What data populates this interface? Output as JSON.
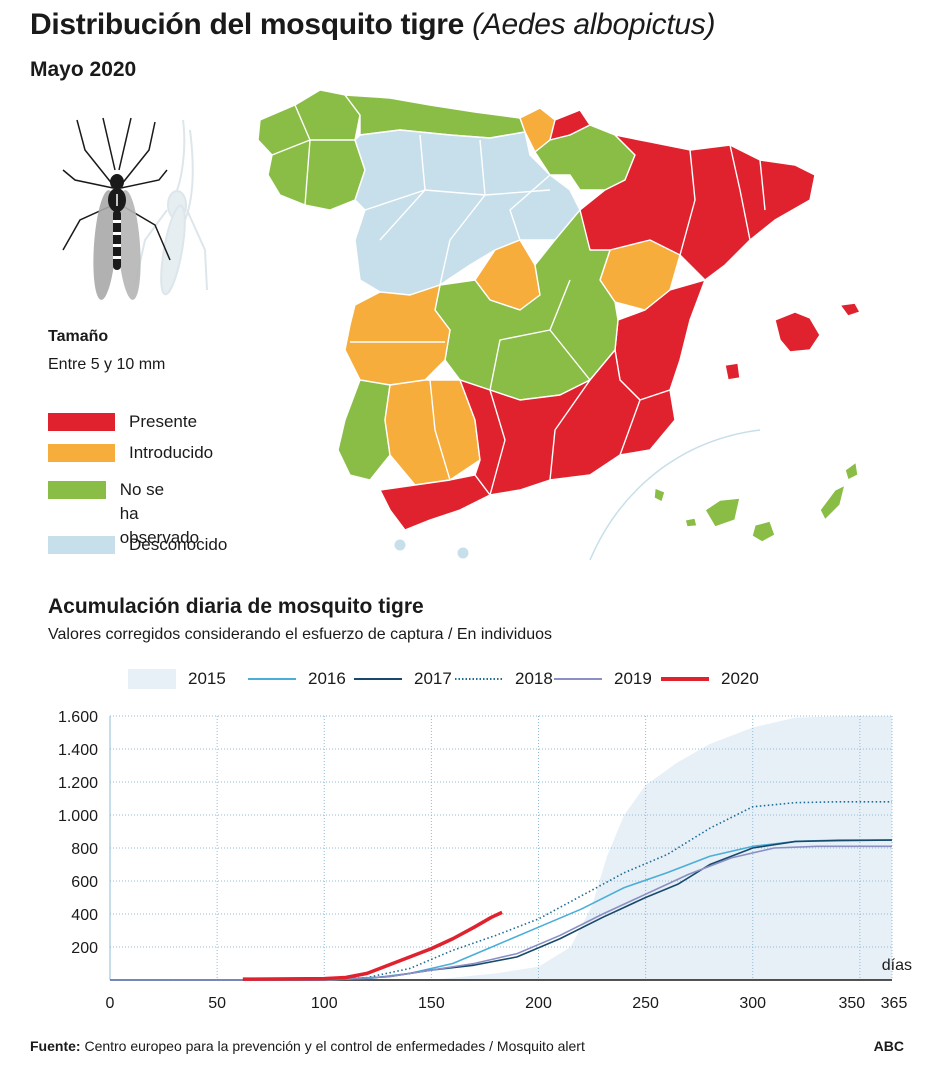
{
  "header": {
    "title": "Distribución del mosquito tigre",
    "title_scientific": "(Aedes albopictus)",
    "subtitle": "Mayo 2020"
  },
  "size": {
    "label": "Tamaño",
    "value": "Entre 5 y 10 mm"
  },
  "map_legend": [
    {
      "label": "Presente",
      "color": "#e0222f"
    },
    {
      "label": "Introducido",
      "color": "#f6ad3c"
    },
    {
      "label": "No se\nha observado",
      "color": "#8abd45"
    },
    {
      "label": "Desconocido",
      "color": "#c7dfea"
    }
  ],
  "chart_data": {
    "type": "line",
    "title": "Acumulación diaria de mosquito tigre",
    "subtitle": "Valores corregidos considerando el esfuerzo de captura / En individuos",
    "xlabel": "días",
    "ylabel": "",
    "xlim": [
      0,
      365
    ],
    "ylim": [
      0,
      1600
    ],
    "x_ticks": [
      0,
      50,
      100,
      150,
      200,
      250,
      300,
      350,
      365
    ],
    "y_ticks": [
      200,
      400,
      600,
      800,
      1000,
      1200,
      1400,
      1600
    ],
    "y_tick_labels": [
      "200",
      "400",
      "600",
      "800",
      "1.000",
      "1.200",
      "1.400",
      "1.600"
    ],
    "grid": true,
    "legend_position": "top",
    "series": [
      {
        "name": "2015",
        "style": "area",
        "color": "#e7eff7",
        "x": [
          0,
          150,
          180,
          200,
          215,
          225,
          232,
          240,
          250,
          265,
          280,
          300,
          320,
          350,
          365
        ],
        "y": [
          0,
          0,
          40,
          80,
          200,
          450,
          750,
          1000,
          1180,
          1320,
          1430,
          1530,
          1590,
          1600,
          1600
        ]
      },
      {
        "name": "2016",
        "style": "solid",
        "color": "#4aaed9",
        "x": [
          0,
          100,
          120,
          140,
          160,
          180,
          200,
          220,
          240,
          260,
          280,
          300,
          320,
          340,
          365
        ],
        "y": [
          0,
          2,
          8,
          40,
          100,
          210,
          320,
          430,
          560,
          650,
          750,
          810,
          840,
          848,
          848
        ]
      },
      {
        "name": "2017",
        "style": "solid",
        "color": "#16496b",
        "x": [
          0,
          100,
          130,
          150,
          170,
          190,
          210,
          230,
          250,
          265,
          280,
          300,
          320,
          340,
          365
        ],
        "y": [
          0,
          0,
          20,
          60,
          90,
          140,
          250,
          380,
          500,
          580,
          700,
          800,
          840,
          845,
          848
        ]
      },
      {
        "name": "2018",
        "style": "dotted",
        "color": "#1c6c96",
        "x": [
          0,
          100,
          120,
          140,
          160,
          180,
          200,
          220,
          240,
          260,
          280,
          300,
          320,
          340,
          365
        ],
        "y": [
          0,
          2,
          15,
          70,
          180,
          270,
          370,
          510,
          650,
          760,
          920,
          1050,
          1075,
          1080,
          1080
        ]
      },
      {
        "name": "2019",
        "style": "solid",
        "color": "#8a8fc4",
        "x": [
          0,
          100,
          130,
          150,
          170,
          190,
          210,
          230,
          250,
          270,
          290,
          310,
          330,
          365
        ],
        "y": [
          0,
          0,
          20,
          60,
          100,
          160,
          270,
          400,
          520,
          640,
          740,
          800,
          810,
          810
        ]
      },
      {
        "name": "2020",
        "style": "solid",
        "color": "#e0222f",
        "x": [
          62,
          100,
          110,
          120,
          130,
          140,
          150,
          160,
          170,
          178,
          183
        ],
        "y": [
          5,
          8,
          15,
          40,
          90,
          140,
          190,
          250,
          320,
          380,
          410
        ]
      }
    ]
  },
  "footer": {
    "source_label": "Fuente:",
    "source_text": " Centro europeo para la prevención y el control de enfermedades / Mosquito alert",
    "brand": "ABC"
  }
}
